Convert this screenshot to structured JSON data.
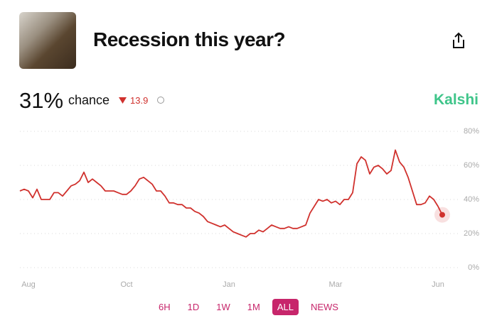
{
  "header": {
    "title": "Recession this year?",
    "chance_value": "31%",
    "chance_label": "chance",
    "change": "13.9",
    "brand": "Kalshi"
  },
  "buttons": [
    "6H",
    "1D",
    "1W",
    "1M",
    "ALL",
    "NEWS"
  ],
  "chart_data": {
    "type": "line",
    "color": "#d0312d",
    "grid": true,
    "ylim": [
      0,
      80
    ],
    "yticks": [
      {
        "value": 0,
        "label": "0%"
      },
      {
        "value": 20,
        "label": "20%"
      },
      {
        "value": 40,
        "label": "40%"
      },
      {
        "value": 60,
        "label": "60%"
      },
      {
        "value": 80,
        "label": "80%"
      }
    ],
    "categories": [
      null,
      null,
      "Aug",
      null,
      null,
      null,
      null,
      null,
      null,
      null,
      null,
      null,
      null,
      null,
      null,
      null,
      null,
      null,
      null,
      null,
      null,
      null,
      null,
      null,
      null,
      "Oct",
      null,
      null,
      null,
      null,
      null,
      null,
      null,
      null,
      null,
      null,
      null,
      null,
      null,
      null,
      null,
      null,
      null,
      null,
      null,
      null,
      null,
      null,
      null,
      "Jan",
      null,
      null,
      null,
      null,
      null,
      null,
      null,
      null,
      null,
      null,
      null,
      null,
      null,
      null,
      null,
      null,
      null,
      null,
      null,
      null,
      null,
      null,
      null,
      null,
      "Mar",
      null,
      null,
      null,
      null,
      null,
      null,
      null,
      null,
      null,
      null,
      null,
      null,
      null,
      null,
      null,
      null,
      null,
      null,
      null,
      null,
      null,
      null,
      null,
      "Jun",
      null
    ],
    "values": [
      45,
      46,
      45,
      41,
      46,
      40,
      40,
      40,
      44,
      44,
      42,
      45,
      48,
      49,
      51,
      56,
      50,
      52,
      50,
      48,
      45,
      45,
      45,
      44,
      43,
      43,
      45,
      48,
      52,
      53,
      51,
      49,
      45,
      45,
      42,
      38,
      38,
      37,
      37,
      35,
      35,
      33,
      32,
      30,
      27,
      26,
      25,
      24,
      25,
      23,
      21,
      20,
      19,
      18,
      20,
      20,
      22,
      21,
      23,
      25,
      24,
      23,
      23,
      24,
      23,
      23,
      24,
      25,
      32,
      36,
      40,
      39,
      40,
      38,
      39,
      37,
      40,
      40,
      44,
      61,
      65,
      63,
      55,
      59,
      60,
      58,
      55,
      57,
      69,
      62,
      59,
      53,
      45,
      37,
      37,
      38,
      42,
      40,
      36,
      31
    ]
  }
}
